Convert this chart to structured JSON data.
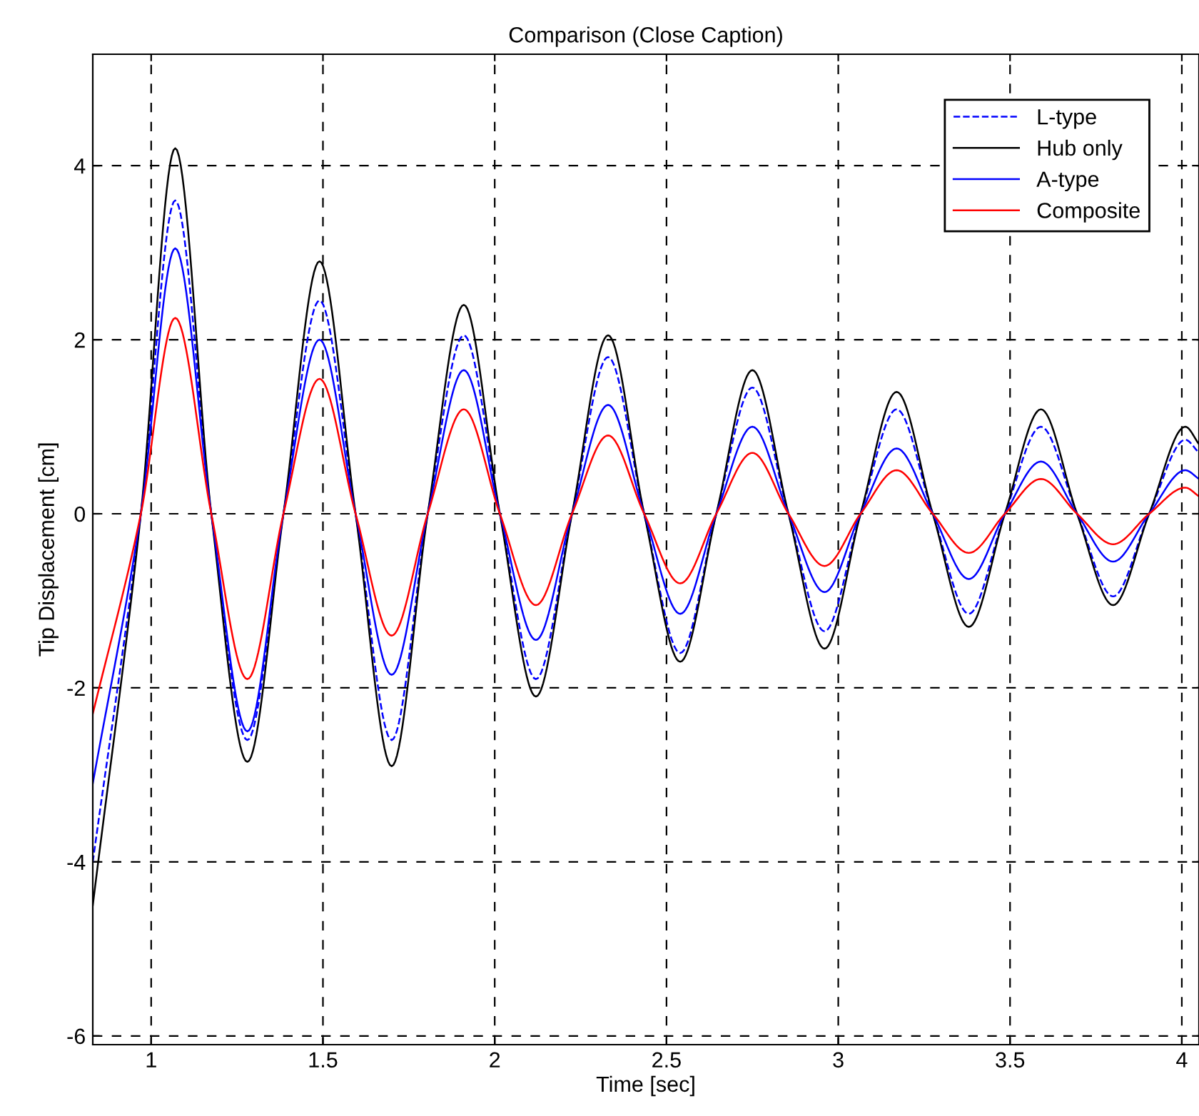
{
  "chart_data": {
    "type": "line",
    "title": "Comparison (Close Caption)",
    "xlabel": "Time [sec]",
    "ylabel": "Tip Displacement [cm]",
    "x": [
      0.83,
      0.97,
      1.07,
      1.175,
      1.28,
      1.385,
      1.49,
      1.595,
      1.7,
      1.805,
      1.91,
      2.015,
      2.12,
      2.225,
      2.33,
      2.435,
      2.54,
      2.645,
      2.75,
      2.855,
      2.96,
      3.065,
      3.17,
      3.275,
      3.38,
      3.485,
      3.59,
      3.695,
      3.8,
      3.905,
      4.01,
      4.05
    ],
    "series": [
      {
        "name": "L-type",
        "color": "#0000ff",
        "line_style": "dashed",
        "values": [
          -4.0,
          0,
          3.6,
          0,
          -2.6,
          0,
          2.45,
          0,
          -2.6,
          0,
          2.05,
          0,
          -1.9,
          0,
          1.8,
          0,
          -1.6,
          0,
          1.45,
          0,
          -1.35,
          0,
          1.2,
          0,
          -1.15,
          0,
          1.0,
          0,
          -0.95,
          0,
          0.85,
          0.7
        ]
      },
      {
        "name": "Hub only",
        "color": "#000000",
        "line_style": "solid",
        "values": [
          -4.5,
          0,
          4.2,
          0,
          -2.85,
          0,
          2.9,
          0,
          -2.9,
          0,
          2.4,
          0,
          -2.1,
          0,
          2.05,
          0,
          -1.7,
          0,
          1.65,
          0,
          -1.55,
          0,
          1.4,
          0,
          -1.3,
          0,
          1.2,
          0,
          -1.05,
          0,
          1.0,
          0.8
        ]
      },
      {
        "name": "A-type",
        "color": "#0000ff",
        "line_style": "solid",
        "values": [
          -3.1,
          0,
          3.05,
          0,
          -2.5,
          0,
          2.0,
          0,
          -1.85,
          0,
          1.65,
          0,
          -1.45,
          0,
          1.25,
          0,
          -1.15,
          0,
          1.0,
          0,
          -0.9,
          0,
          0.75,
          0,
          -0.75,
          0,
          0.6,
          0,
          -0.55,
          0,
          0.5,
          0.4
        ]
      },
      {
        "name": "Composite",
        "color": "#ff0000",
        "line_style": "solid",
        "values": [
          -2.3,
          0,
          2.25,
          0,
          -1.9,
          0,
          1.55,
          0,
          -1.4,
          0,
          1.2,
          0,
          -1.05,
          0,
          0.9,
          0,
          -0.8,
          0,
          0.7,
          0,
          -0.6,
          0,
          0.5,
          0,
          -0.45,
          0,
          0.4,
          0,
          -0.35,
          0,
          0.3,
          0.2
        ]
      }
    ],
    "xlim": [
      0.83,
      4.05
    ],
    "ylim": [
      -6.1,
      5.28
    ],
    "xticks": [
      1,
      1.5,
      2,
      2.5,
      3,
      3.5,
      4
    ],
    "yticks": [
      -6,
      -4,
      -2,
      0,
      2,
      4
    ],
    "grid": true,
    "legend": "top right",
    "marker": "none"
  }
}
